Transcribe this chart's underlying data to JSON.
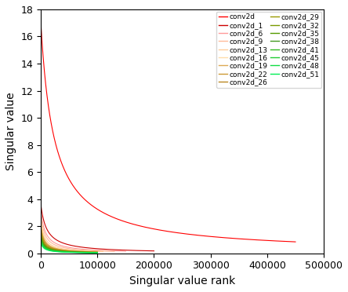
{
  "xlabel": "Singular value rank",
  "ylabel": "Singular value",
  "xlim": [
    0,
    500000
  ],
  "ylim": [
    0,
    18
  ],
  "series": [
    {
      "label": "conv2d",
      "color": "#ff0000",
      "sv_max": 17.0,
      "n_pts": 450000,
      "decay": 2e-07
    },
    {
      "label": "conv2d_1",
      "color": "#cc0000",
      "sv_max": 3.6,
      "n_pts": 200000,
      "decay": 8e-07
    },
    {
      "label": "conv2d_6",
      "color": "#ff9999",
      "sv_max": 3.2,
      "n_pts": 150000,
      "decay": 9.5e-07
    },
    {
      "label": "conv2d_9",
      "color": "#ffbb99",
      "sv_max": 2.9,
      "n_pts": 130000,
      "decay": 1.1e-06
    },
    {
      "label": "conv2d_13",
      "color": "#ffcc99",
      "sv_max": 2.6,
      "n_pts": 110000,
      "decay": 1.3e-06
    },
    {
      "label": "conv2d_16",
      "color": "#ffddaa",
      "sv_max": 2.4,
      "n_pts": 100000,
      "decay": 1.5e-06
    },
    {
      "label": "conv2d_19",
      "color": "#ddaa55",
      "sv_max": 2.2,
      "n_pts": 100000,
      "decay": 1.55e-06
    },
    {
      "label": "conv2d_22",
      "color": "#cc9933",
      "sv_max": 2.0,
      "n_pts": 100000,
      "decay": 1.6e-06
    },
    {
      "label": "conv2d_26",
      "color": "#bb8822",
      "sv_max": 1.8,
      "n_pts": 100000,
      "decay": 1.7e-06
    },
    {
      "label": "conv2d_29",
      "color": "#999900",
      "sv_max": 1.6,
      "n_pts": 100000,
      "decay": 1.75e-06
    },
    {
      "label": "conv2d_32",
      "color": "#7a9900",
      "sv_max": 1.45,
      "n_pts": 100000,
      "decay": 1.8e-06
    },
    {
      "label": "conv2d_35",
      "color": "#559900",
      "sv_max": 1.3,
      "n_pts": 100000,
      "decay": 1.85e-06
    },
    {
      "label": "conv2d_38",
      "color": "#449922",
      "sv_max": 1.18,
      "n_pts": 100000,
      "decay": 1.9e-06
    },
    {
      "label": "conv2d_41",
      "color": "#33bb22",
      "sv_max": 1.08,
      "n_pts": 100000,
      "decay": 1.95e-06
    },
    {
      "label": "conv2d_45",
      "color": "#22cc33",
      "sv_max": 0.98,
      "n_pts": 100000,
      "decay": 2e-06
    },
    {
      "label": "conv2d_48",
      "color": "#11dd44",
      "sv_max": 0.88,
      "n_pts": 100000,
      "decay": 2.1e-06
    },
    {
      "label": "conv2d_51",
      "color": "#00ee55",
      "sv_max": 0.78,
      "n_pts": 100000,
      "decay": 2.2e-06
    }
  ],
  "legend_fontsize": 6.5,
  "axis_fontsize": 10,
  "tick_labelsize": 9,
  "figsize": [
    4.44,
    3.72
  ],
  "dpi": 100
}
